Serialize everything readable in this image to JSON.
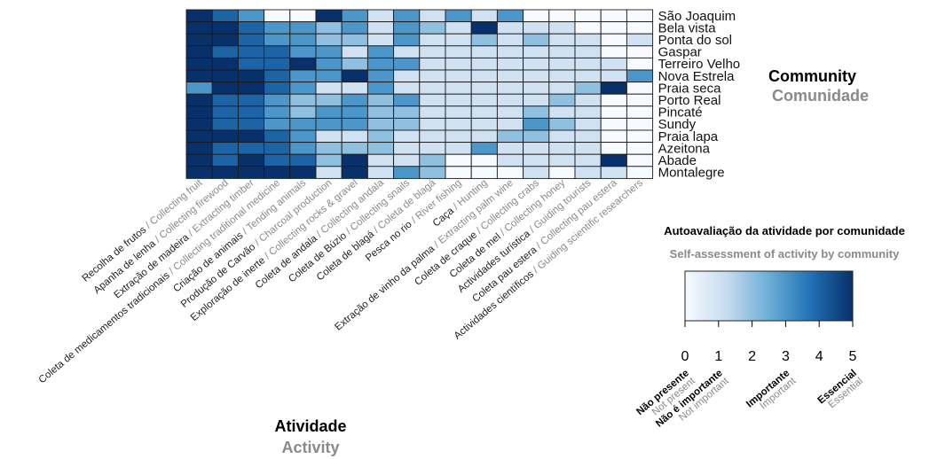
{
  "chart_data": {
    "type": "heatmap",
    "rows": [
      "São Joaquim",
      "Bela vista",
      "Ponta do sol",
      "Gaspar",
      "Terreiro Velho",
      "Nova Estrela",
      "Praia seca",
      "Porto Real",
      "Pincaté",
      "Sundy",
      "Praia lapa",
      "Azeitona",
      "Abade",
      "Montalegre"
    ],
    "columns": [
      {
        "main": "Recolha de frutos",
        "translation": "Collecting fruit"
      },
      {
        "main": "Apanha de lenha",
        "translation": "Collecting firewood"
      },
      {
        "main": "Extração de madeira",
        "translation": "Extracting timber"
      },
      {
        "main": "Coleta de medicamentos tradicionais",
        "translation": "Collecting traditional medicine"
      },
      {
        "main": "Criação de animais",
        "translation": "Tending animals"
      },
      {
        "main": "Produção de Carvão",
        "translation": "Charcoal production"
      },
      {
        "main": "Exploração de inerte",
        "translation": "Collecting rocks & gravel"
      },
      {
        "main": "Coleta de andala",
        "translation": "Collecting andala"
      },
      {
        "main": "Coleta de Búzio",
        "translation": "Collecting snails"
      },
      {
        "main": "Coleta de blagá",
        "translation": "Coleta de blagá"
      },
      {
        "main": "Pesca no rio",
        "translation": "River fishing"
      },
      {
        "main": "Caça",
        "translation": "Hunting"
      },
      {
        "main": "Extração de vinho da palma",
        "translation": "Extracting palm wine"
      },
      {
        "main": "Coleta de craque",
        "translation": "Collecting crabs"
      },
      {
        "main": "Coleta de mel",
        "translation": "Collecting honey"
      },
      {
        "main": "Actividades turística",
        "translation": "Guiding tourists"
      },
      {
        "main": "Coleta pau estera",
        "translation": "Collecting pau estera"
      },
      {
        "main": "Actividades científicos",
        "translation": "Guiding scientific researchers"
      }
    ],
    "values": [
      [
        5,
        4,
        3,
        0,
        0,
        5,
        3,
        1,
        3,
        1,
        3,
        1,
        3,
        0,
        0,
        0,
        0,
        0
      ],
      [
        5,
        5,
        4,
        3,
        3,
        2,
        3,
        1,
        3,
        2,
        1,
        5,
        1,
        1,
        1,
        0,
        0,
        0
      ],
      [
        5,
        5,
        4,
        3,
        3,
        2,
        2,
        1,
        3,
        1,
        1,
        2,
        1,
        2,
        1,
        1,
        0,
        1
      ],
      [
        5,
        4,
        4,
        4,
        3,
        3,
        1,
        3,
        1,
        1,
        1,
        1,
        1,
        1,
        1,
        1,
        0,
        0
      ],
      [
        5,
        5,
        4,
        4,
        5,
        3,
        2,
        3,
        3,
        1,
        1,
        1,
        1,
        1,
        1,
        1,
        1,
        0
      ],
      [
        5,
        5,
        5,
        4,
        3,
        3,
        5,
        3,
        1,
        1,
        1,
        1,
        1,
        1,
        1,
        1,
        1,
        3
      ],
      [
        3,
        5,
        5,
        4,
        3,
        1,
        1,
        3,
        1,
        1,
        1,
        1,
        1,
        1,
        1,
        2,
        5,
        0
      ],
      [
        5,
        4,
        4,
        3,
        2,
        2,
        3,
        2,
        3,
        1,
        1,
        1,
        1,
        1,
        2,
        1,
        0,
        0
      ],
      [
        5,
        4,
        4,
        3,
        2,
        3,
        3,
        2,
        2,
        1,
        1,
        1,
        1,
        2,
        1,
        1,
        0,
        0
      ],
      [
        5,
        4,
        4,
        3,
        3,
        3,
        3,
        2,
        2,
        1,
        1,
        1,
        1,
        3,
        2,
        1,
        0,
        0
      ],
      [
        5,
        5,
        5,
        4,
        3,
        1,
        1,
        2,
        1,
        1,
        1,
        1,
        2,
        2,
        1,
        1,
        0,
        0
      ],
      [
        5,
        4,
        4,
        4,
        3,
        2,
        2,
        2,
        1,
        1,
        1,
        3,
        1,
        1,
        1,
        1,
        0,
        0
      ],
      [
        5,
        4,
        5,
        4,
        4,
        2,
        5,
        1,
        1,
        2,
        0,
        0,
        1,
        1,
        1,
        1,
        5,
        0
      ],
      [
        5,
        5,
        5,
        5,
        5,
        1,
        5,
        1,
        3,
        2,
        0,
        0,
        0,
        1,
        0,
        1,
        1,
        0
      ]
    ],
    "color_min": "#f7fbff",
    "color_max": "#08306b",
    "row_axis_title": {
      "main": "Community",
      "translation": "Comunidade"
    },
    "column_axis_title": {
      "main": "Atividade",
      "translation": "Activity"
    },
    "legend": {
      "title": "Autoavaliação da atividade por comunidade",
      "subtitle": "Self-assessment of activity by community",
      "range": [
        0,
        5
      ],
      "ticks": [
        "0",
        "1",
        "2",
        "3",
        "4",
        "5"
      ],
      "levels": [
        {
          "at": 0,
          "main": "Não presente",
          "translation": "Not present"
        },
        {
          "at": 1,
          "main": "Não é importante",
          "translation": "Not important"
        },
        {
          "at": 3,
          "main": "Importante",
          "translation": "Important"
        },
        {
          "at": 5,
          "main": "Essencial",
          "translation": "Essential"
        }
      ]
    }
  }
}
